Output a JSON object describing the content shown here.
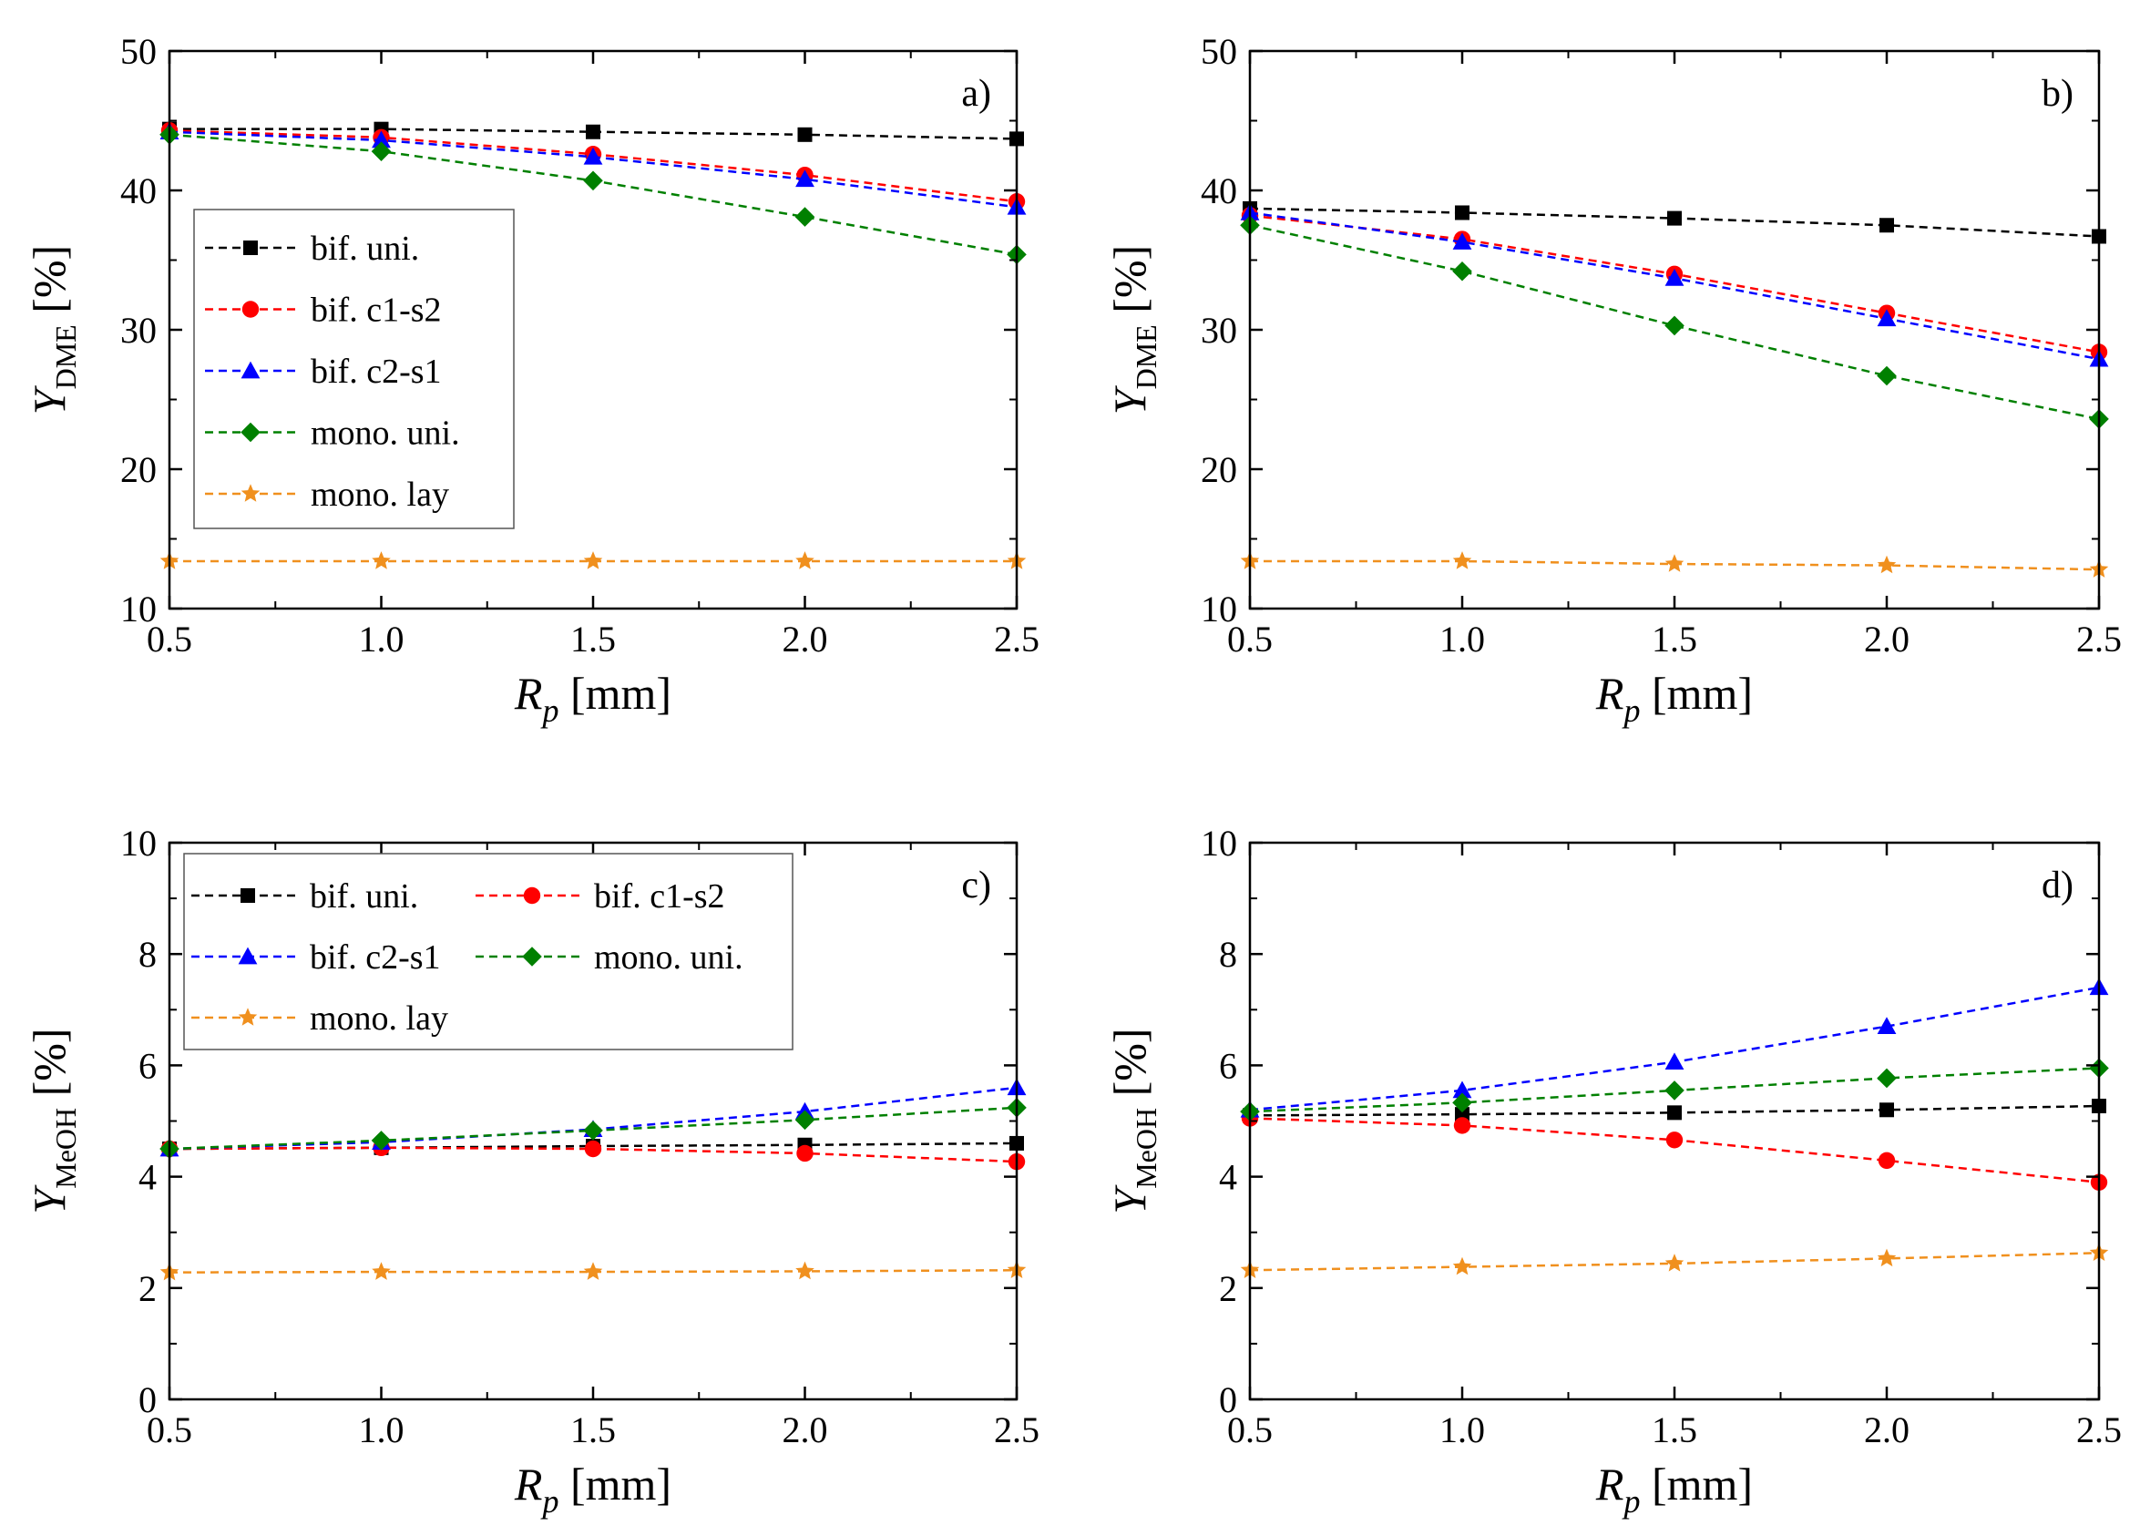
{
  "figure": {
    "colors": {
      "bif_uni": "#000000",
      "bif_c1_s2": "#ff0000",
      "bif_c2_s1": "#0000ff",
      "mono_uni": "#008000",
      "mono_lay": "#f0901e"
    }
  },
  "chart_data": [
    {
      "type": "line",
      "panel_label": "a)",
      "title": "",
      "xlabel_symbol": "R",
      "xlabel_sub": "p",
      "xlabel_unit": " [mm]",
      "ylabel_symbol": "Y",
      "ylabel_sub": "DME",
      "ylabel_unit": " [%]",
      "x": [
        0.5,
        1.0,
        1.5,
        2.0,
        2.5
      ],
      "xlim": [
        0.5,
        2.5
      ],
      "ylim": [
        10,
        50
      ],
      "xticks": [
        "0.5",
        "1.0",
        "1.5",
        "2.0",
        "2.5"
      ],
      "yticks": [
        "10",
        "20",
        "30",
        "40",
        "50"
      ],
      "legend_layout": "column",
      "legend_position": "upper-left",
      "series": [
        {
          "name": "bif. uni.",
          "marker": "square",
          "color": "#000000",
          "values": [
            44.4,
            44.4,
            44.2,
            44.0,
            43.7
          ]
        },
        {
          "name": "bif. c1-s2",
          "marker": "circle",
          "color": "#ff0000",
          "values": [
            44.3,
            43.8,
            42.6,
            41.1,
            39.2
          ]
        },
        {
          "name": "bif. c2-s1",
          "marker": "triangle",
          "color": "#0000ff",
          "values": [
            44.2,
            43.6,
            42.4,
            40.8,
            38.8
          ]
        },
        {
          "name": "mono. uni.",
          "marker": "diamond",
          "color": "#008000",
          "values": [
            44.0,
            42.8,
            40.7,
            38.1,
            35.4
          ]
        },
        {
          "name": "mono. lay",
          "marker": "star",
          "color": "#f0901e",
          "values": [
            13.4,
            13.4,
            13.4,
            13.4,
            13.4
          ]
        }
      ]
    },
    {
      "type": "line",
      "panel_label": "b)",
      "title": "",
      "xlabel_symbol": "R",
      "xlabel_sub": "p",
      "xlabel_unit": " [mm]",
      "ylabel_symbol": "Y",
      "ylabel_sub": "DME",
      "ylabel_unit": " [%]",
      "x": [
        0.5,
        1.0,
        1.5,
        2.0,
        2.5
      ],
      "xlim": [
        0.5,
        2.5
      ],
      "ylim": [
        10,
        50
      ],
      "xticks": [
        "0.5",
        "1.0",
        "1.5",
        "2.0",
        "2.5"
      ],
      "yticks": [
        "10",
        "20",
        "30",
        "40",
        "50"
      ],
      "legend_layout": "none",
      "series": [
        {
          "name": "bif. uni.",
          "marker": "square",
          "color": "#000000",
          "values": [
            38.7,
            38.4,
            38.0,
            37.5,
            36.7
          ]
        },
        {
          "name": "bif. c1-s2",
          "marker": "circle",
          "color": "#ff0000",
          "values": [
            38.2,
            36.5,
            34.0,
            31.2,
            28.4
          ]
        },
        {
          "name": "bif. c2-s1",
          "marker": "triangle",
          "color": "#0000ff",
          "values": [
            38.4,
            36.3,
            33.7,
            30.8,
            27.9
          ]
        },
        {
          "name": "mono. uni.",
          "marker": "diamond",
          "color": "#008000",
          "values": [
            37.5,
            34.2,
            30.3,
            26.7,
            23.6
          ]
        },
        {
          "name": "mono. lay",
          "marker": "star",
          "color": "#f0901e",
          "values": [
            13.4,
            13.4,
            13.2,
            13.1,
            12.8
          ]
        }
      ]
    },
    {
      "type": "line",
      "panel_label": "c)",
      "title": "",
      "xlabel_symbol": "R",
      "xlabel_sub": "p",
      "xlabel_unit": " [mm]",
      "ylabel_symbol": "Y",
      "ylabel_sub": "MeOH",
      "ylabel_unit": " [%]",
      "x": [
        0.5,
        1.0,
        1.5,
        2.0,
        2.5
      ],
      "xlim": [
        0.5,
        2.5
      ],
      "ylim": [
        0,
        10
      ],
      "xticks": [
        "0.5",
        "1.0",
        "1.5",
        "2.0",
        "2.5"
      ],
      "yticks": [
        "0",
        "2",
        "4",
        "6",
        "8",
        "10"
      ],
      "legend_layout": "grid",
      "legend_position": "upper-left",
      "series": [
        {
          "name": "bif. uni.",
          "marker": "square",
          "color": "#000000",
          "values": [
            4.5,
            4.52,
            4.55,
            4.57,
            4.6
          ]
        },
        {
          "name": "bif. c1-s2",
          "marker": "circle",
          "color": "#ff0000",
          "values": [
            4.5,
            4.52,
            4.5,
            4.42,
            4.27
          ]
        },
        {
          "name": "bif. c2-s1",
          "marker": "triangle",
          "color": "#0000ff",
          "values": [
            4.5,
            4.62,
            4.85,
            5.17,
            5.6
          ]
        },
        {
          "name": "mono. uni.",
          "marker": "diamond",
          "color": "#008000",
          "values": [
            4.5,
            4.65,
            4.83,
            5.02,
            5.24
          ]
        },
        {
          "name": "mono. lay",
          "marker": "star",
          "color": "#f0901e",
          "values": [
            2.28,
            2.29,
            2.29,
            2.3,
            2.32
          ]
        }
      ]
    },
    {
      "type": "line",
      "panel_label": "d)",
      "title": "",
      "xlabel_symbol": "R",
      "xlabel_sub": "p",
      "xlabel_unit": " [mm]",
      "ylabel_symbol": "Y",
      "ylabel_sub": "MeOH",
      "ylabel_unit": " [%]",
      "x": [
        0.5,
        1.0,
        1.5,
        2.0,
        2.5
      ],
      "xlim": [
        0.5,
        2.5
      ],
      "ylim": [
        0,
        10
      ],
      "xticks": [
        "0.5",
        "1.0",
        "1.5",
        "2.0",
        "2.5"
      ],
      "yticks": [
        "0",
        "2",
        "4",
        "6",
        "8",
        "10"
      ],
      "legend_layout": "none",
      "series": [
        {
          "name": "bif. uni.",
          "marker": "square",
          "color": "#000000",
          "values": [
            5.1,
            5.12,
            5.15,
            5.2,
            5.27
          ]
        },
        {
          "name": "bif. c1-s2",
          "marker": "circle",
          "color": "#ff0000",
          "values": [
            5.05,
            4.92,
            4.66,
            4.29,
            3.9
          ]
        },
        {
          "name": "bif. c2-s1",
          "marker": "triangle",
          "color": "#0000ff",
          "values": [
            5.2,
            5.55,
            6.06,
            6.7,
            7.4
          ]
        },
        {
          "name": "mono. uni.",
          "marker": "diamond",
          "color": "#008000",
          "values": [
            5.17,
            5.33,
            5.55,
            5.77,
            5.95
          ]
        },
        {
          "name": "mono. lay",
          "marker": "star",
          "color": "#f0901e",
          "values": [
            2.32,
            2.38,
            2.44,
            2.53,
            2.63
          ]
        }
      ]
    }
  ]
}
